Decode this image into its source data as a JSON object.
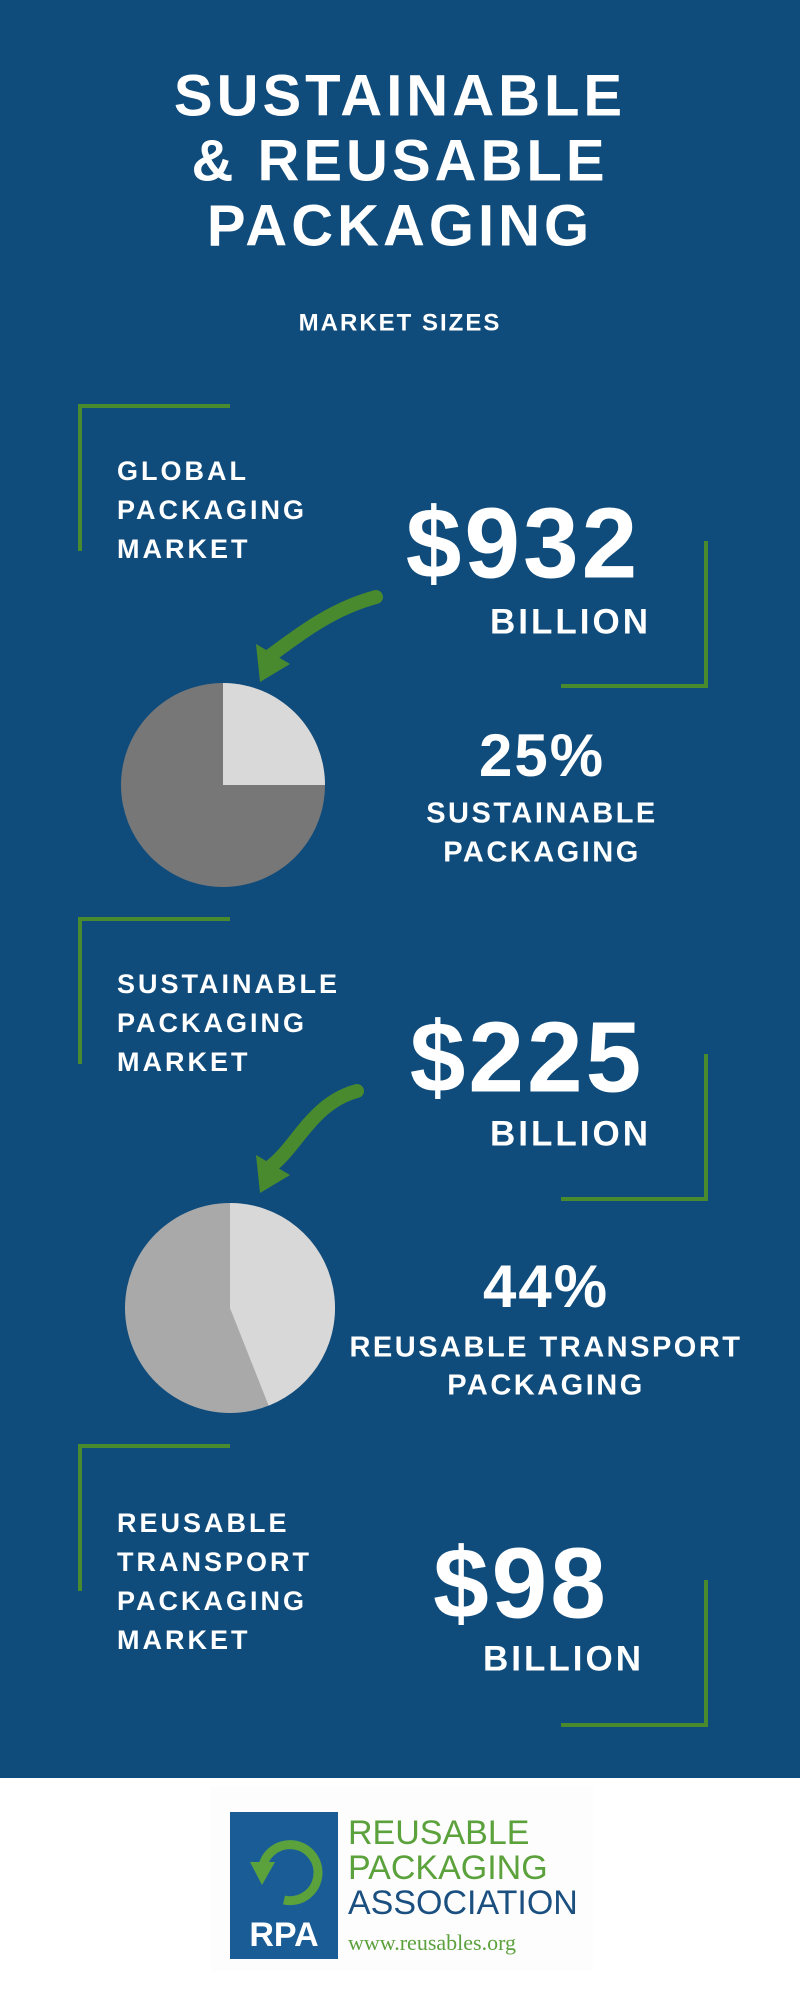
{
  "header": {
    "title_lines": [
      "SUSTAINABLE",
      "& REUSABLE",
      "PACKAGING"
    ],
    "subtitle": "MARKET SIZES"
  },
  "sections": [
    {
      "label_lines": [
        "GLOBAL",
        "PACKAGING",
        "MARKET"
      ],
      "amount": "$932",
      "unit": "BILLION",
      "share": 25,
      "share_label": "25%",
      "share_caption_lines": [
        "SUSTAINABLE",
        "PACKAGING"
      ]
    },
    {
      "label_lines": [
        "SUSTAINABLE",
        "PACKAGING",
        "MARKET"
      ],
      "amount": "$225",
      "unit": "BILLION",
      "share": 44,
      "share_label": "44%",
      "share_caption_lines": [
        "REUSABLE TRANSPORT",
        "PACKAGING"
      ]
    },
    {
      "label_lines": [
        "REUSABLE",
        "TRANSPORT",
        "PACKAGING",
        "MARKET"
      ],
      "amount": "$98",
      "unit": "BILLION"
    }
  ],
  "logo": {
    "mark": "RPA",
    "name_lines": [
      "REUSABLE",
      "PACKAGING",
      "ASSOCIATION"
    ],
    "url": "www.reusables.org"
  }
}
